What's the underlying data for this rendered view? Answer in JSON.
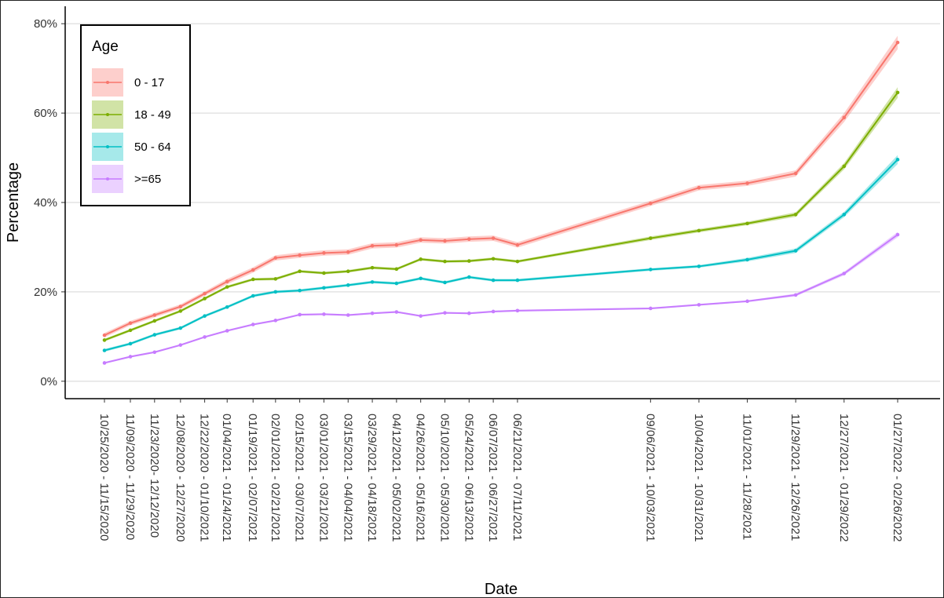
{
  "chart_data": {
    "type": "line",
    "x_label": "Date",
    "y_label": "Percentage",
    "legend_title": "Age",
    "legend": "top-left",
    "grid": true,
    "categories": [
      "10/25/2020 - 11/15/2020",
      "11/09/2020 - 11/29/2020",
      "11/23/2020- 12/12/2020",
      "12/08/2020 - 12/27/2020",
      "12/22/2020 - 01/10/2021",
      "01/04/2021 - 01/24/2021",
      "01/19/2021 - 02/07/2021",
      "02/01/2021 - 02/21/2021",
      "02/15/2021 - 03/07/2021",
      "03/01/2021 - 03/21/2021",
      "03/15/2021 - 04/04/2021",
      "03/29/2021 - 04/18/2021",
      "04/12/2021 - 05/02/2021",
      "04/26/2021 - 05/16/2021",
      "05/10/2021 - 05/30/2021",
      "05/24/2021 - 06/13/2021",
      "06/07/2021 - 06/27/2021",
      "06/21/2021 - 07/11/2021",
      "09/06/2021 - 10/03/2021",
      "10/04/2021 - 10/31/2021",
      "11/01/2021 - 11/28/2021",
      "11/29/2021 - 12/26/2021",
      "12/27/2021 - 01/29/2022",
      "01/27/2022 - 02/26/2022"
    ],
    "ylim": [
      -3.9,
      83.9
    ],
    "yticks": [
      {
        "value": 0,
        "label": "0%"
      },
      {
        "value": 20,
        "label": "20%"
      },
      {
        "value": 40,
        "label": "40%"
      },
      {
        "value": 60,
        "label": "60%"
      },
      {
        "value": 80,
        "label": "80%"
      }
    ],
    "series": [
      {
        "name": "0 - 17",
        "color": "#F8766D",
        "values": [
          10.3,
          13,
          14.8,
          16.7,
          19.6,
          22.3,
          24.9,
          27.6,
          28.2,
          28.7,
          28.9,
          30.3,
          30.5,
          31.6,
          31.4,
          31.8,
          32,
          30.5,
          39.8,
          43.3,
          44.3,
          46.5,
          59,
          75.8
        ],
        "errors": [
          0.5,
          0.5,
          0.5,
          0.5,
          0.5,
          0.6,
          0.6,
          0.6,
          0.6,
          0.6,
          0.6,
          0.6,
          0.6,
          0.6,
          0.6,
          0.6,
          0.6,
          0.6,
          0.6,
          0.6,
          0.6,
          0.7,
          1,
          1.5
        ]
      },
      {
        "name": "18 - 49",
        "color": "#7CAE00",
        "values": [
          9.2,
          11.4,
          13.5,
          15.7,
          18.5,
          21.1,
          22.8,
          22.9,
          24.6,
          24.2,
          24.6,
          25.4,
          25.1,
          27.3,
          26.8,
          26.9,
          27.4,
          26.8,
          32,
          33.7,
          35.3,
          37.3,
          48.1,
          64.6
        ],
        "errors": [
          0.3,
          0.3,
          0.3,
          0.3,
          0.3,
          0.3,
          0.3,
          0.3,
          0.3,
          0.3,
          0.3,
          0.3,
          0.3,
          0.3,
          0.3,
          0.3,
          0.3,
          0.3,
          0.4,
          0.4,
          0.4,
          0.5,
          0.7,
          1.2
        ]
      },
      {
        "name": "50 - 64",
        "color": "#00BFC4",
        "values": [
          6.9,
          8.4,
          10.4,
          11.9,
          14.6,
          16.6,
          19.1,
          20,
          20.3,
          20.9,
          21.5,
          22.2,
          21.9,
          23,
          22.1,
          23.3,
          22.6,
          22.6,
          25,
          25.7,
          27.2,
          29.2,
          37.3,
          49.6
        ],
        "errors": [
          0.3,
          0.3,
          0.3,
          0.3,
          0.3,
          0.3,
          0.3,
          0.3,
          0.3,
          0.3,
          0.3,
          0.3,
          0.3,
          0.3,
          0.3,
          0.3,
          0.3,
          0.3,
          0.3,
          0.3,
          0.4,
          0.5,
          0.6,
          1
        ]
      },
      {
        "name": ">=65",
        "color": "#C77CFF",
        "values": [
          4.1,
          5.5,
          6.5,
          8.1,
          9.9,
          11.3,
          12.7,
          13.6,
          14.9,
          15,
          14.8,
          15.2,
          15.5,
          14.6,
          15.3,
          15.2,
          15.6,
          15.8,
          16.3,
          17.1,
          17.9,
          19.3,
          24.1,
          32.8
        ],
        "errors": [
          0.2,
          0.2,
          0.2,
          0.2,
          0.2,
          0.2,
          0.2,
          0.2,
          0.2,
          0.2,
          0.2,
          0.2,
          0.2,
          0.2,
          0.2,
          0.2,
          0.2,
          0.2,
          0.2,
          0.2,
          0.2,
          0.3,
          0.4,
          0.6
        ]
      }
    ]
  }
}
